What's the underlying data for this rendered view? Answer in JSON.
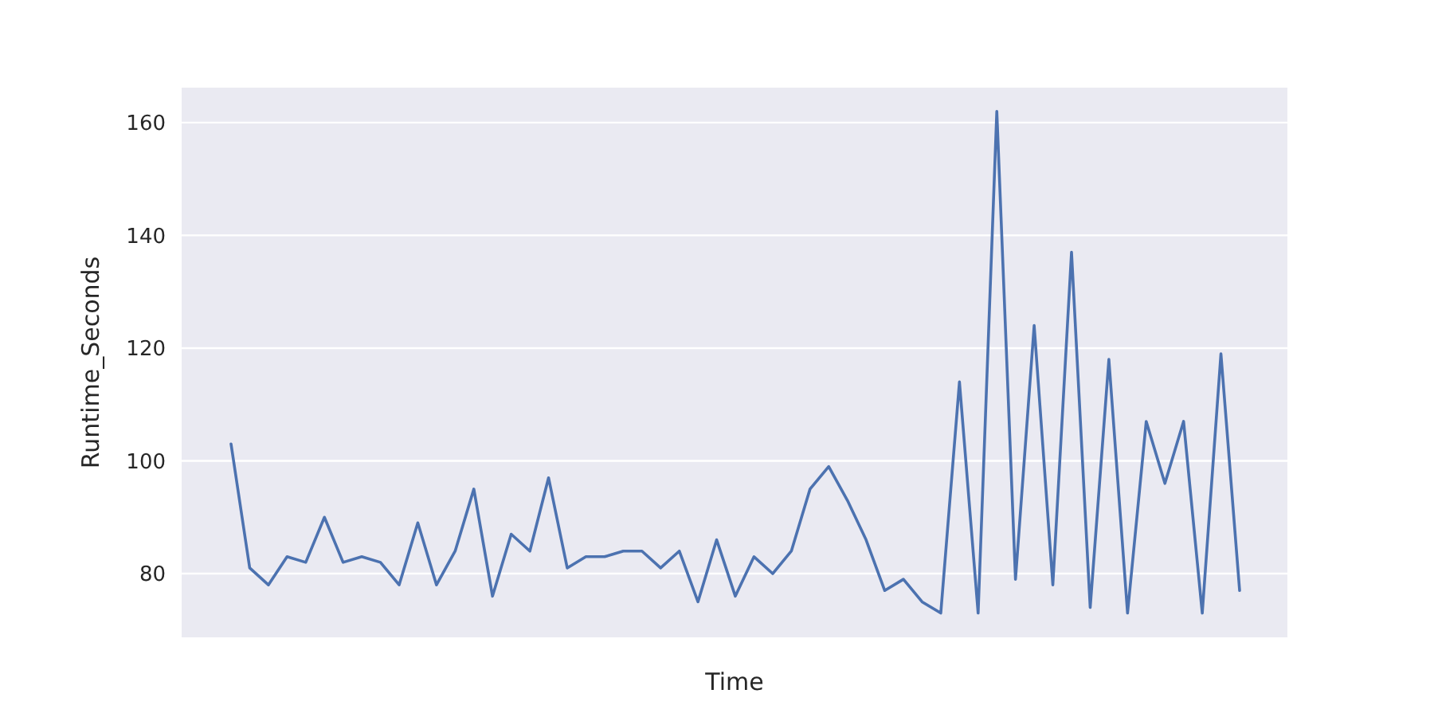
{
  "chart_data": {
    "type": "line",
    "xlabel": "Time",
    "ylabel": "Runtime_Seconds",
    "categories": [
      null,
      null,
      null,
      null,
      null,
      null,
      null,
      null,
      null,
      null,
      null,
      null,
      null,
      null,
      null,
      null,
      null,
      null,
      null,
      null,
      null,
      null,
      null,
      null,
      null,
      null,
      null,
      null,
      null,
      null,
      null,
      null,
      null,
      null,
      null,
      null,
      null,
      null,
      null,
      null,
      null,
      null,
      null,
      null,
      null,
      null,
      null,
      null,
      null,
      null,
      null,
      null,
      null,
      null,
      null
    ],
    "series": [
      {
        "color": "#4c72b0",
        "values": [
          103,
          81,
          78,
          83,
          82,
          90,
          82,
          83,
          82,
          78,
          89,
          78,
          84,
          95,
          76,
          87,
          84,
          97,
          81,
          83,
          83,
          84,
          84,
          81,
          84,
          75,
          86,
          76,
          83,
          80,
          84,
          95,
          99,
          93,
          86,
          77,
          79,
          75,
          73,
          114,
          73,
          162,
          79,
          124,
          78,
          137,
          74,
          118,
          73,
          107,
          96,
          107,
          73,
          119,
          77
        ]
      }
    ],
    "ylim": [
      68.7,
      166.2
    ],
    "yticks": [
      80,
      100,
      120,
      140,
      160
    ],
    "grid": "y",
    "marker": "none",
    "line_style": "solid"
  }
}
